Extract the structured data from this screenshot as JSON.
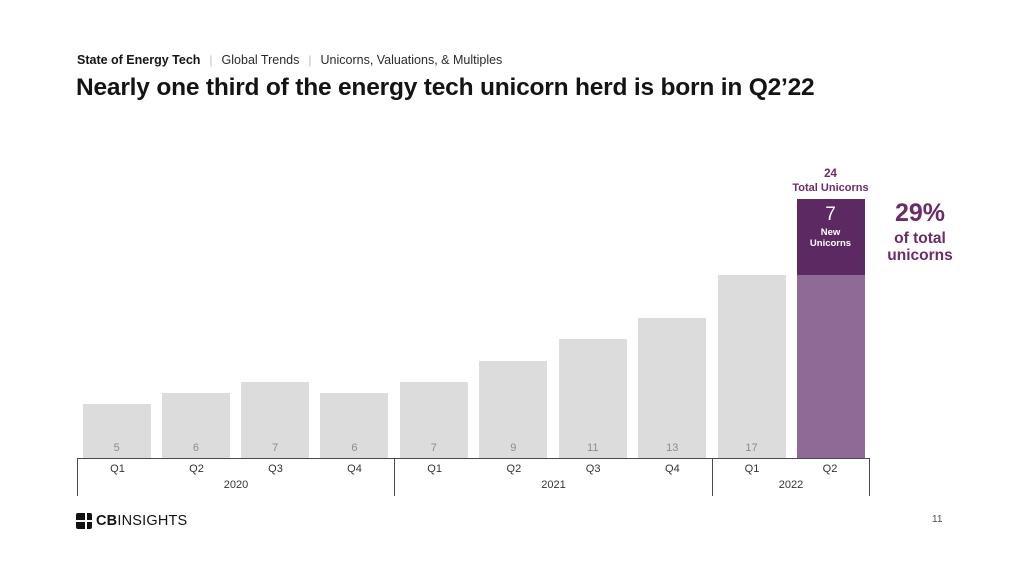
{
  "slide": {
    "breadcrumb": {
      "section": "State of Energy Tech",
      "separator": "|",
      "trail": [
        "Global Trends",
        "Unicorns, Valuations, & Multiples"
      ]
    },
    "title": "Nearly one third of the energy tech unicorn herd is born in Q2’22",
    "footer": {
      "logo_bold": "CB",
      "logo_regular": "INSIGHTS",
      "page_number": "11"
    }
  },
  "chart_data": {
    "type": "bar",
    "title": "",
    "xlabel": "",
    "ylabel": "",
    "ylim": [
      0,
      24
    ],
    "grid": false,
    "groups": [
      {
        "year": "2020",
        "quarters": [
          "Q1",
          "Q2",
          "Q3",
          "Q4"
        ],
        "values": [
          5,
          6,
          7,
          6
        ]
      },
      {
        "year": "2021",
        "quarters": [
          "Q1",
          "Q2",
          "Q3",
          "Q4"
        ],
        "values": [
          7,
          9,
          11,
          13
        ]
      },
      {
        "year": "2022",
        "quarters": [
          "Q1",
          "Q2"
        ],
        "values": [
          17,
          24
        ]
      }
    ],
    "highlight": {
      "year": "2022",
      "quarter": "Q2",
      "total_value": "24",
      "total_label": "Total Unicorns",
      "new_value": "7",
      "new_label": "New Unicorns",
      "prior_value": 17,
      "annotation_value": "29%",
      "annotation_label": "of total unicorns"
    },
    "colors": {
      "bar": "#dcdcdc",
      "value_label": "#8c8c8c",
      "highlight_dark": "#5c2963",
      "highlight_light": "#8f6a97",
      "accent_text": "#6d2a68"
    }
  }
}
